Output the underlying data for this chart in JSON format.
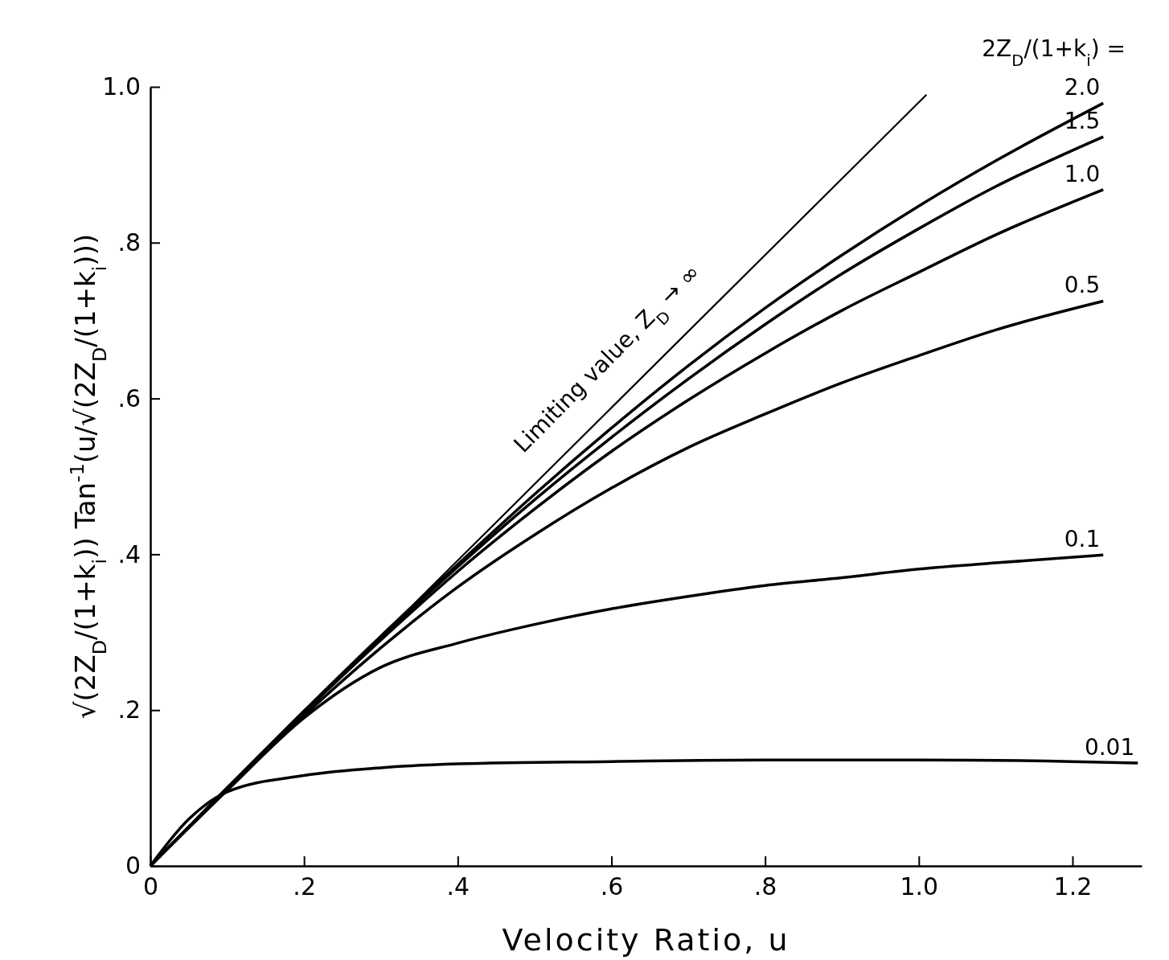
{
  "chart_data": {
    "type": "line",
    "xlabel": "Velocity  Ratio, u",
    "ylabel": "√(2Z$_{D}$/(1+k$_{i}$))  Tan$^{-1}$(u/√(2Z$_{D}$/(1+k$_{i}$)))",
    "legend_title": "2Z$_{D}$/(1+k$_{i}$) =",
    "x": [
      0,
      0.1,
      0.2,
      0.3,
      0.4,
      0.5,
      0.6,
      0.7,
      0.8,
      0.9,
      1.0,
      1.1,
      1.24
    ],
    "xlim": [
      0,
      1.29
    ],
    "ylim": [
      0,
      1.0
    ],
    "xticks": [
      0,
      {
        "value": 0.2,
        "label": ".2"
      },
      {
        "value": 0.4,
        "label": ".4"
      },
      {
        "value": 0.6,
        "label": ".6"
      },
      {
        "value": 0.8,
        "label": ".8"
      },
      {
        "value": 1.0,
        "label": "1.0"
      },
      {
        "value": 1.2,
        "label": "1.2"
      }
    ],
    "yticks": [
      0,
      {
        "value": 0.2,
        "label": ".2"
      },
      {
        "value": 0.4,
        "label": ".4"
      },
      {
        "value": 0.6,
        "label": ".6"
      },
      {
        "value": 0.8,
        "label": ".8"
      },
      {
        "value": 1.0,
        "label": "1.0"
      }
    ],
    "grid": false,
    "annotations": [
      "Limiting value, Z$_{D}$ → ∞"
    ],
    "series": [
      {
        "name": "2.0",
        "color": "#000000",
        "values": [
          0,
          0.1,
          0.199,
          0.295,
          0.387,
          0.477,
          0.562,
          0.642,
          0.716,
          0.784,
          0.847,
          0.905,
          0.979
        ]
      },
      {
        "name": "1.5",
        "color": "#000000",
        "values": [
          0,
          0.1,
          0.198,
          0.293,
          0.384,
          0.47,
          0.55,
          0.625,
          0.695,
          0.76,
          0.818,
          0.872,
          0.936
        ]
      },
      {
        "name": "1.0",
        "color": "#000000",
        "values": [
          0,
          0.1,
          0.197,
          0.29,
          0.378,
          0.458,
          0.532,
          0.598,
          0.658,
          0.713,
          0.762,
          0.81,
          0.868
        ]
      },
      {
        "name": "0.5",
        "color": "#000000",
        "values": [
          0,
          0.099,
          0.193,
          0.28,
          0.358,
          0.425,
          0.485,
          0.537,
          0.58,
          0.62,
          0.655,
          0.688,
          0.725
        ]
      },
      {
        "name": "0.1",
        "color": "#000000",
        "values": [
          0,
          0.097,
          0.19,
          0.255,
          0.286,
          0.31,
          0.33,
          0.346,
          0.36,
          0.37,
          0.381,
          0.389,
          0.399
        ]
      },
      {
        "name": "0.01",
        "color": "#000000",
        "x": [
          0,
          0.05,
          0.1,
          0.2,
          0.3,
          0.4,
          0.6,
          0.8,
          1.0,
          1.2,
          1.285
        ],
        "values": [
          0,
          0.06,
          0.095,
          0.116,
          0.126,
          0.131,
          0.134,
          0.136,
          0.136,
          0.134,
          0.132
        ]
      },
      {
        "color": "#000000",
        "x": [
          0,
          1.01
        ],
        "values": [
          0,
          0.99
        ]
      }
    ]
  }
}
